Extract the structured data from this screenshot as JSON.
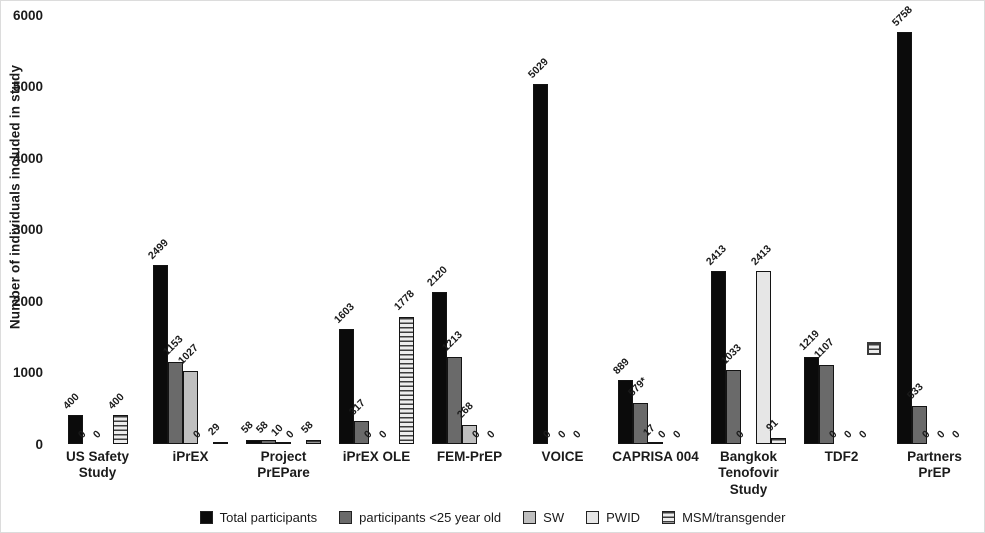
{
  "chart_data": {
    "type": "bar",
    "title": "",
    "xlabel": "",
    "ylabel": "Number of individuals included in study",
    "ylim": [
      0,
      6000
    ],
    "y_ticks": [
      0,
      1000,
      2000,
      3000,
      4000,
      5000,
      6000
    ],
    "grid": false,
    "legend_position": "bottom",
    "series_names": [
      "Total participants",
      "participants <25 year old",
      "SW",
      "PWID",
      "MSM/transgender"
    ],
    "categories": [
      "US Safety Study",
      "iPrEX",
      "Project PrEPare",
      "iPrEX OLE",
      "FEM-PrEP",
      "VOICE",
      "CAPRISA 004",
      "Bangkok Tenofovir Study",
      "TDF2",
      "Partners PrEP"
    ],
    "groups": [
      {
        "category": "US Safety\nStudy",
        "bars": [
          {
            "series": "total",
            "value": 400,
            "label": "400"
          },
          {
            "series": "under25",
            "value": 0,
            "label": "0"
          },
          {
            "series": "sw",
            "value": 0,
            "label": "0"
          },
          {
            "series": "msm",
            "value": 400,
            "label": "400"
          }
        ]
      },
      {
        "category": "iPrEX",
        "bars": [
          {
            "series": "total",
            "value": 2499,
            "label": "2499"
          },
          {
            "series": "under25",
            "value": 1153,
            "label": "1153"
          },
          {
            "series": "sw",
            "value": 1027,
            "label": "1027"
          },
          {
            "series": "pwid",
            "value": 0,
            "label": "0"
          },
          {
            "series": "msm",
            "value": 29,
            "label": "29"
          }
        ]
      },
      {
        "category": "Project\nPrEPare",
        "bars": [
          {
            "series": "total",
            "value": 58,
            "label": "58"
          },
          {
            "series": "under25",
            "value": 58,
            "label": "58"
          },
          {
            "series": "sw",
            "value": 10,
            "label": "10"
          },
          {
            "series": "pwid",
            "value": 0,
            "label": "0"
          },
          {
            "series": "msm",
            "value": 58,
            "label": "58"
          }
        ]
      },
      {
        "category": "iPrEX OLE",
        "bars": [
          {
            "series": "total",
            "value": 1603,
            "label": "1603"
          },
          {
            "series": "under25",
            "value": 317,
            "label": "317"
          },
          {
            "series": "sw",
            "value": 0,
            "label": "0"
          },
          {
            "series": "pwid",
            "value": 0,
            "label": "0"
          },
          {
            "series": "msm",
            "value": 1778,
            "label": "1778"
          }
        ]
      },
      {
        "category": "FEM-PrEP",
        "bars": [
          {
            "series": "total",
            "value": 2120,
            "label": "2120"
          },
          {
            "series": "under25",
            "value": 1213,
            "label": "1213"
          },
          {
            "series": "sw",
            "value": 268,
            "label": "268"
          },
          {
            "series": "pwid",
            "value": 0,
            "label": "0"
          },
          {
            "series": "msm",
            "value": 0,
            "label": "0"
          }
        ]
      },
      {
        "category": "VOICE",
        "bars": [
          {
            "series": "total",
            "value": 5029,
            "label": "5029"
          },
          {
            "series": "under25",
            "value": 0,
            "label": "0"
          },
          {
            "series": "sw",
            "value": 0,
            "label": "0"
          },
          {
            "series": "pwid",
            "value": 0,
            "label": "0"
          }
        ]
      },
      {
        "category": "CAPRISA 004",
        "bars": [
          {
            "series": "total",
            "value": 889,
            "label": "889"
          },
          {
            "series": "under25",
            "value": 579,
            "label": "579*"
          },
          {
            "series": "sw",
            "value": 17,
            "label": "17"
          },
          {
            "series": "pwid",
            "value": 0,
            "label": "0"
          },
          {
            "series": "msm",
            "value": 0,
            "label": "0"
          }
        ]
      },
      {
        "category": "Bangkok\nTenofovir\nStudy",
        "bars": [
          {
            "series": "total",
            "value": 2413,
            "label": "2413"
          },
          {
            "series": "under25",
            "value": 1033,
            "label": "1033"
          },
          {
            "series": "sw",
            "value": 0,
            "label": "0"
          },
          {
            "series": "pwid",
            "value": 2413,
            "label": "2413"
          },
          {
            "series": "msm",
            "value": 91,
            "label": "91"
          }
        ]
      },
      {
        "category": "TDF2",
        "bars": [
          {
            "series": "total",
            "value": 1219,
            "label": "1219"
          },
          {
            "series": "under25",
            "value": 1107,
            "label": "1107"
          },
          {
            "series": "sw",
            "value": 0,
            "label": "0"
          },
          {
            "series": "pwid",
            "value": 0,
            "label": "0"
          },
          {
            "series": "msm",
            "value": 0,
            "label": "0"
          }
        ]
      },
      {
        "category": "Partners\nPrEP",
        "bars": [
          {
            "series": "total",
            "value": 5758,
            "label": "5758"
          },
          {
            "series": "under25",
            "value": 533,
            "label": "533"
          },
          {
            "series": "sw",
            "value": 0,
            "label": "0"
          },
          {
            "series": "pwid",
            "value": 0,
            "label": "0"
          },
          {
            "series": "msm",
            "value": 0,
            "label": "0"
          }
        ]
      }
    ],
    "legend": [
      {
        "key": "total",
        "label": "Total participants"
      },
      {
        "key": "under25",
        "label": "participants <25 year old"
      },
      {
        "key": "sw",
        "label": "SW"
      },
      {
        "key": "pwid",
        "label": "PWID"
      },
      {
        "key": "msm",
        "label": "MSM/transgender"
      }
    ],
    "colors": {
      "total": "#0b0b0b",
      "under25": "#6a6a6a",
      "sw": "#bfbfbf",
      "pwid": "#e6e6e6",
      "msm_stripe": "#3d3d3d",
      "msm_bg": "#ededed"
    },
    "annotations": [
      {
        "name": "stray-msm-swatch",
        "x": 866,
        "y": 341
      }
    ]
  }
}
